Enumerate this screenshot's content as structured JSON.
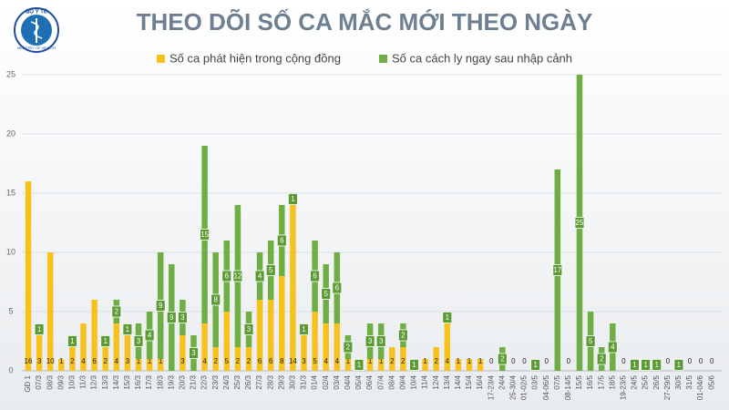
{
  "logo": {
    "top": "BỘ Y TẾ",
    "bottom": "MINISTRY OF HEALTH"
  },
  "chart_data": {
    "type": "bar",
    "stacked": true,
    "title": "THEO DÕI SỐ CA MẮC MỚI THEO NGÀY",
    "categories": [
      "GĐ 1",
      "07/3",
      "08/3",
      "09/3",
      "10/3",
      "11/3",
      "12/3",
      "13/3",
      "14/3",
      "15/3",
      "16/3",
      "17/3",
      "18/3",
      "19/3",
      "20/3",
      "21/3",
      "22/3",
      "23/3",
      "24/3",
      "25/3",
      "26/3",
      "27/3",
      "28/3",
      "29/3",
      "30/3",
      "31/3",
      "01/4",
      "02/4",
      "03/4",
      "04/4",
      "05/4",
      "06/4",
      "07/4",
      "08/4",
      "09/4",
      "10/4",
      "11/4",
      "12/4",
      "13/4",
      "14/4",
      "15/4",
      "16/4",
      "17-23/4",
      "24/4",
      "25-30/4",
      "01-02/5",
      "03/5",
      "04-06/5",
      "07/5",
      "08-14/5",
      "15/5",
      "16/5",
      "17/5",
      "18/5",
      "19-23/5",
      "24/5",
      "25/5",
      "26/5",
      "27-29/5",
      "30/5",
      "31/5",
      "01-04/6",
      "05/6"
    ],
    "series": [
      {
        "name": "Số ca phát hiện trong cộng đồng",
        "color": "#f7c21d",
        "values": [
          16,
          3,
          10,
          1,
          2,
          4,
          6,
          2,
          4,
          3,
          1,
          1,
          1,
          0,
          3,
          0,
          4,
          2,
          5,
          2,
          2,
          6,
          6,
          8,
          14,
          3,
          5,
          4,
          4,
          1,
          0,
          1,
          1,
          2,
          2,
          0,
          1,
          2,
          4,
          1,
          1,
          1,
          0,
          0,
          0,
          0,
          0,
          0,
          0,
          0,
          0,
          0,
          0,
          0,
          0,
          0,
          0,
          0,
          0,
          0,
          0,
          0,
          0
        ]
      },
      {
        "name": "Số ca cách ly ngay sau nhập cảnh",
        "color": "#6fae45",
        "values": [
          0,
          1,
          0,
          0,
          1,
          0,
          0,
          1,
          2,
          1,
          3,
          4,
          9,
          9,
          3,
          3,
          15,
          8,
          6,
          12,
          3,
          4,
          5,
          6,
          1,
          1,
          6,
          5,
          6,
          2,
          1,
          3,
          3,
          0,
          2,
          1,
          0,
          0,
          1,
          0,
          0,
          0,
          0,
          2,
          0,
          0,
          1,
          0,
          17,
          0,
          25,
          5,
          2,
          4,
          0,
          1,
          1,
          1,
          0,
          1,
          0,
          0,
          0
        ]
      }
    ],
    "ylim": [
      0,
      25
    ],
    "yticks": [
      0,
      5,
      10,
      15,
      20,
      25
    ],
    "grid": true
  }
}
